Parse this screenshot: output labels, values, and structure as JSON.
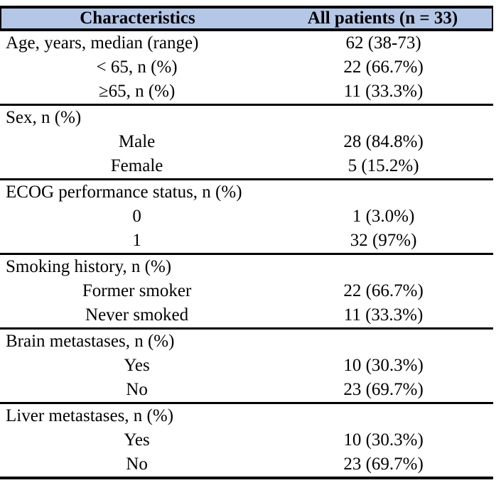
{
  "table": {
    "title": "Patient characteristics table",
    "colors": {
      "header_bg": "#b4c7e7",
      "border": "#000000",
      "text": "#000000"
    },
    "header": {
      "col_characteristics": "Characteristics",
      "col_all_patients": "All patients (n = 33)"
    },
    "sections": [
      {
        "rows": [
          {
            "label": "Age, years, median (range)",
            "value": "62 (38-73)",
            "indent": false
          },
          {
            "label": "< 65, n (%)",
            "value": "22 (66.7%)",
            "indent": true
          },
          {
            "label": "≥65, n (%)",
            "value": "11 (33.3%)",
            "indent": true
          }
        ]
      },
      {
        "rows": [
          {
            "label": "Sex, n (%)",
            "value": "",
            "indent": false
          },
          {
            "label": "Male",
            "value": "28 (84.8%)",
            "indent": true
          },
          {
            "label": "Female",
            "value": "5 (15.2%)",
            "indent": true
          }
        ]
      },
      {
        "rows": [
          {
            "label": "ECOG performance status, n (%)",
            "value": "",
            "indent": false
          },
          {
            "label": "0",
            "value": "1 (3.0%)",
            "indent": true
          },
          {
            "label": "1",
            "value": "32 (97%)",
            "indent": true
          }
        ]
      },
      {
        "rows": [
          {
            "label": "Smoking history, n (%)",
            "value": "",
            "indent": false
          },
          {
            "label": "Former smoker",
            "value": "22 (66.7%)",
            "indent": true
          },
          {
            "label": "Never smoked",
            "value": "11 (33.3%)",
            "indent": true
          }
        ]
      },
      {
        "rows": [
          {
            "label": "Brain metastases, n (%)",
            "value": "",
            "indent": false
          },
          {
            "label": "Yes",
            "value": "10 (30.3%)",
            "indent": true
          },
          {
            "label": "No",
            "value": "23 (69.7%)",
            "indent": true
          }
        ]
      },
      {
        "rows": [
          {
            "label": "Liver metastases, n (%)",
            "value": "",
            "indent": false
          },
          {
            "label": "Yes",
            "value": "10 (30.3%)",
            "indent": true
          },
          {
            "label": "No",
            "value": "23 (69.7%)",
            "indent": true
          }
        ]
      }
    ]
  }
}
